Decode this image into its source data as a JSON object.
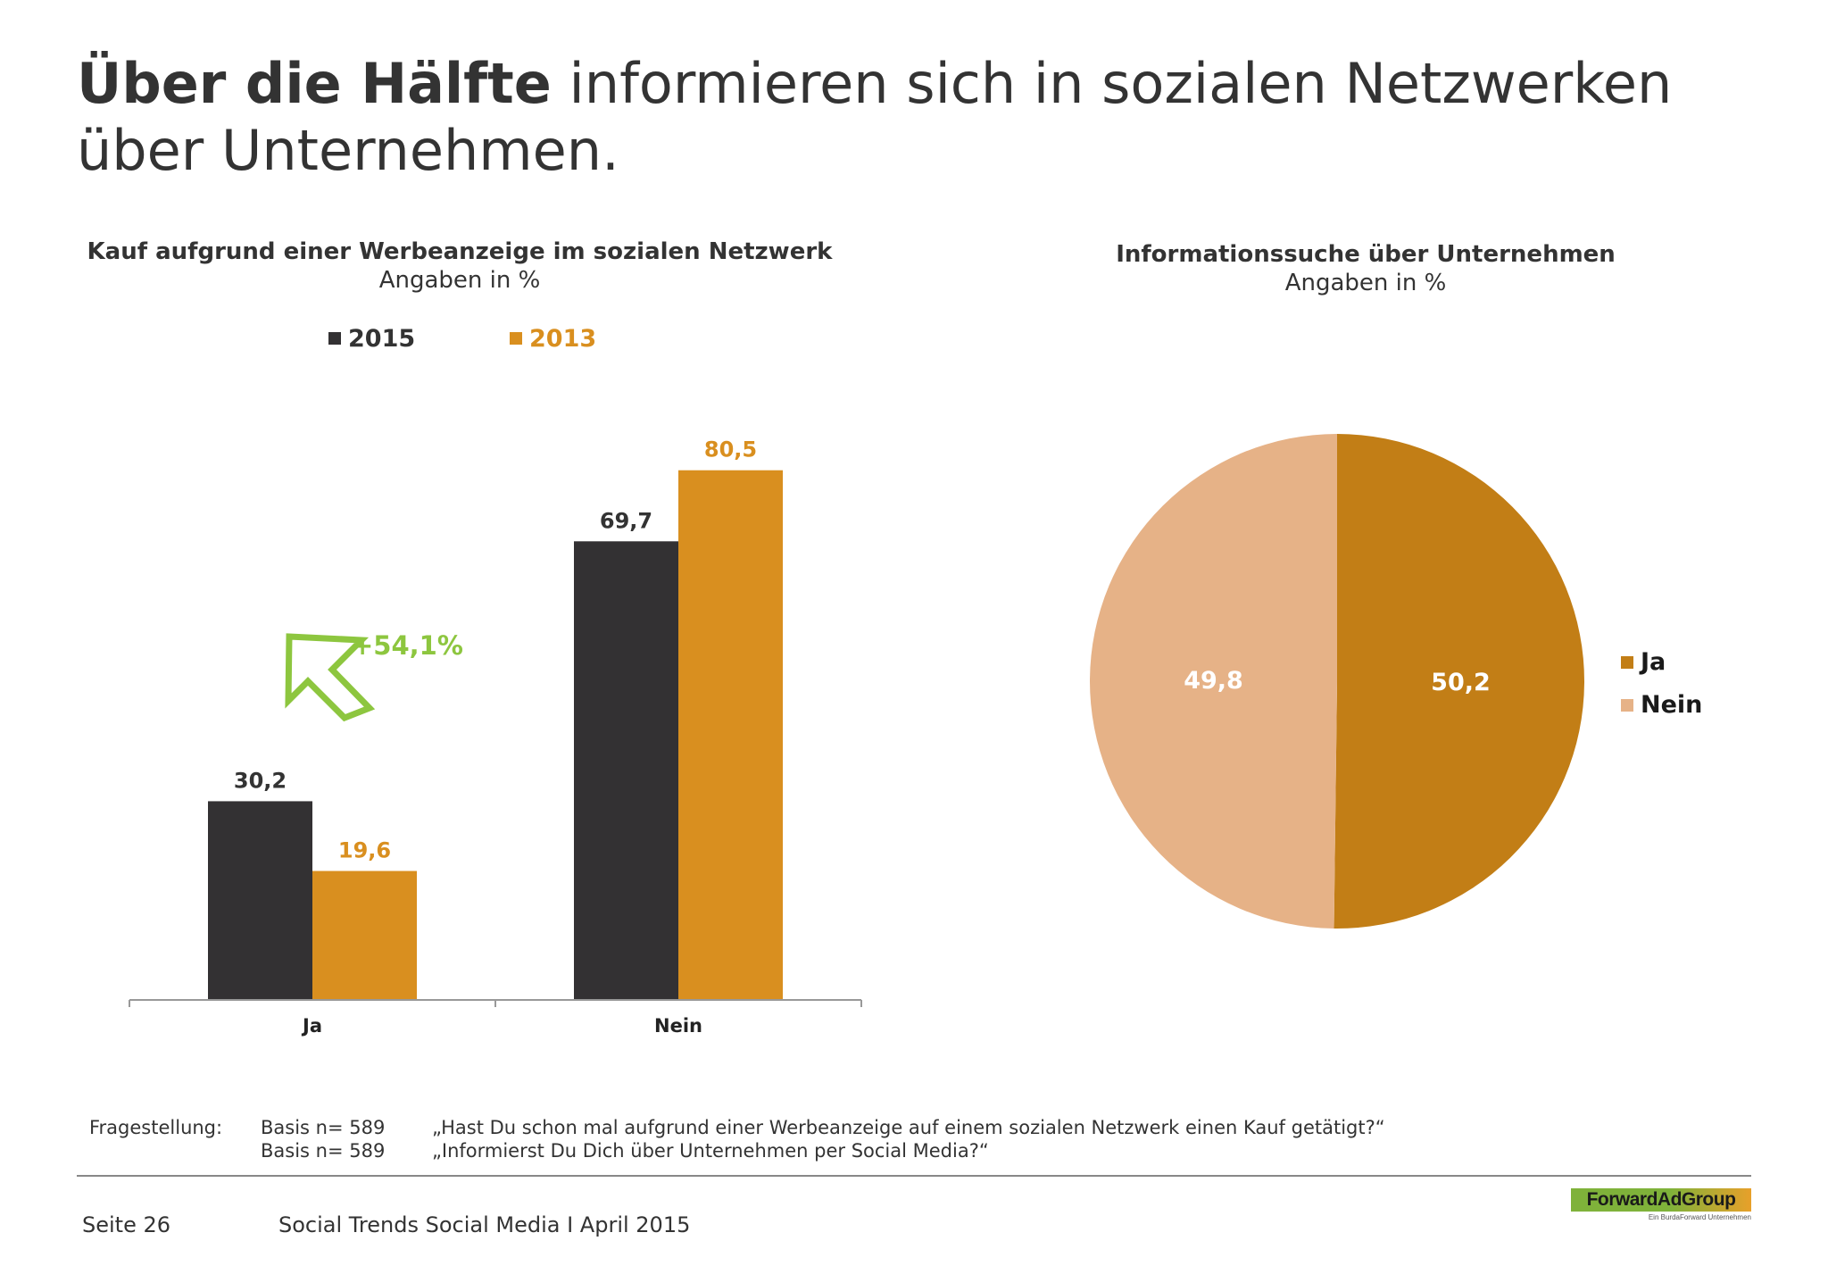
{
  "title": {
    "bold": "Über die Hälfte",
    "rest": " informieren sich in sozialen Netzwerken über Unternehmen."
  },
  "chart_data": [
    {
      "type": "bar",
      "title": "Kauf aufgrund einer Werbeanzeige im sozialen Netzwerk",
      "subtitle": "Angaben in %",
      "categories": [
        "Ja",
        "Nein"
      ],
      "series": [
        {
          "name": "2015",
          "values": [
            30.2,
            69.7
          ],
          "labels": [
            "30,2",
            "69,7"
          ],
          "color": "#333133"
        },
        {
          "name": "2013",
          "values": [
            19.6,
            80.5
          ],
          "labels": [
            "19,6",
            "80,5"
          ],
          "color": "#d98f1f"
        }
      ],
      "ylim": [
        0,
        100
      ],
      "legend": "top",
      "grid": false,
      "annotation": {
        "text": "+54,1%",
        "color": "#8dc63f",
        "icon": "arrow-up-left-icon"
      }
    },
    {
      "type": "pie",
      "title": "Informationssuche über Unternehmen",
      "subtitle": "Angaben in %",
      "slices": [
        {
          "name": "Ja",
          "value": 50.2,
          "label": "50,2",
          "color": "#c27e16"
        },
        {
          "name": "Nein",
          "value": 49.8,
          "label": "49,8",
          "color": "#e6b287"
        }
      ],
      "legend": "right"
    }
  ],
  "footnote": {
    "label": "Fragestellung:",
    "rows": [
      {
        "basis": "Basis n= 589",
        "question": "„Hast Du schon mal aufgrund einer Werbeanzeige auf einem sozialen Netzwerk einen Kauf getätigt?“"
      },
      {
        "basis": "Basis n= 589",
        "question": "„Informierst Du Dich über Unternehmen per Social Media?“"
      }
    ]
  },
  "footer": {
    "page": "Seite 26",
    "publication": "Social Trends Social Media I April 2015"
  },
  "logo": {
    "name": "ForwardAdGroup",
    "tagline": "Ein BurdaForward Unternehmen"
  }
}
